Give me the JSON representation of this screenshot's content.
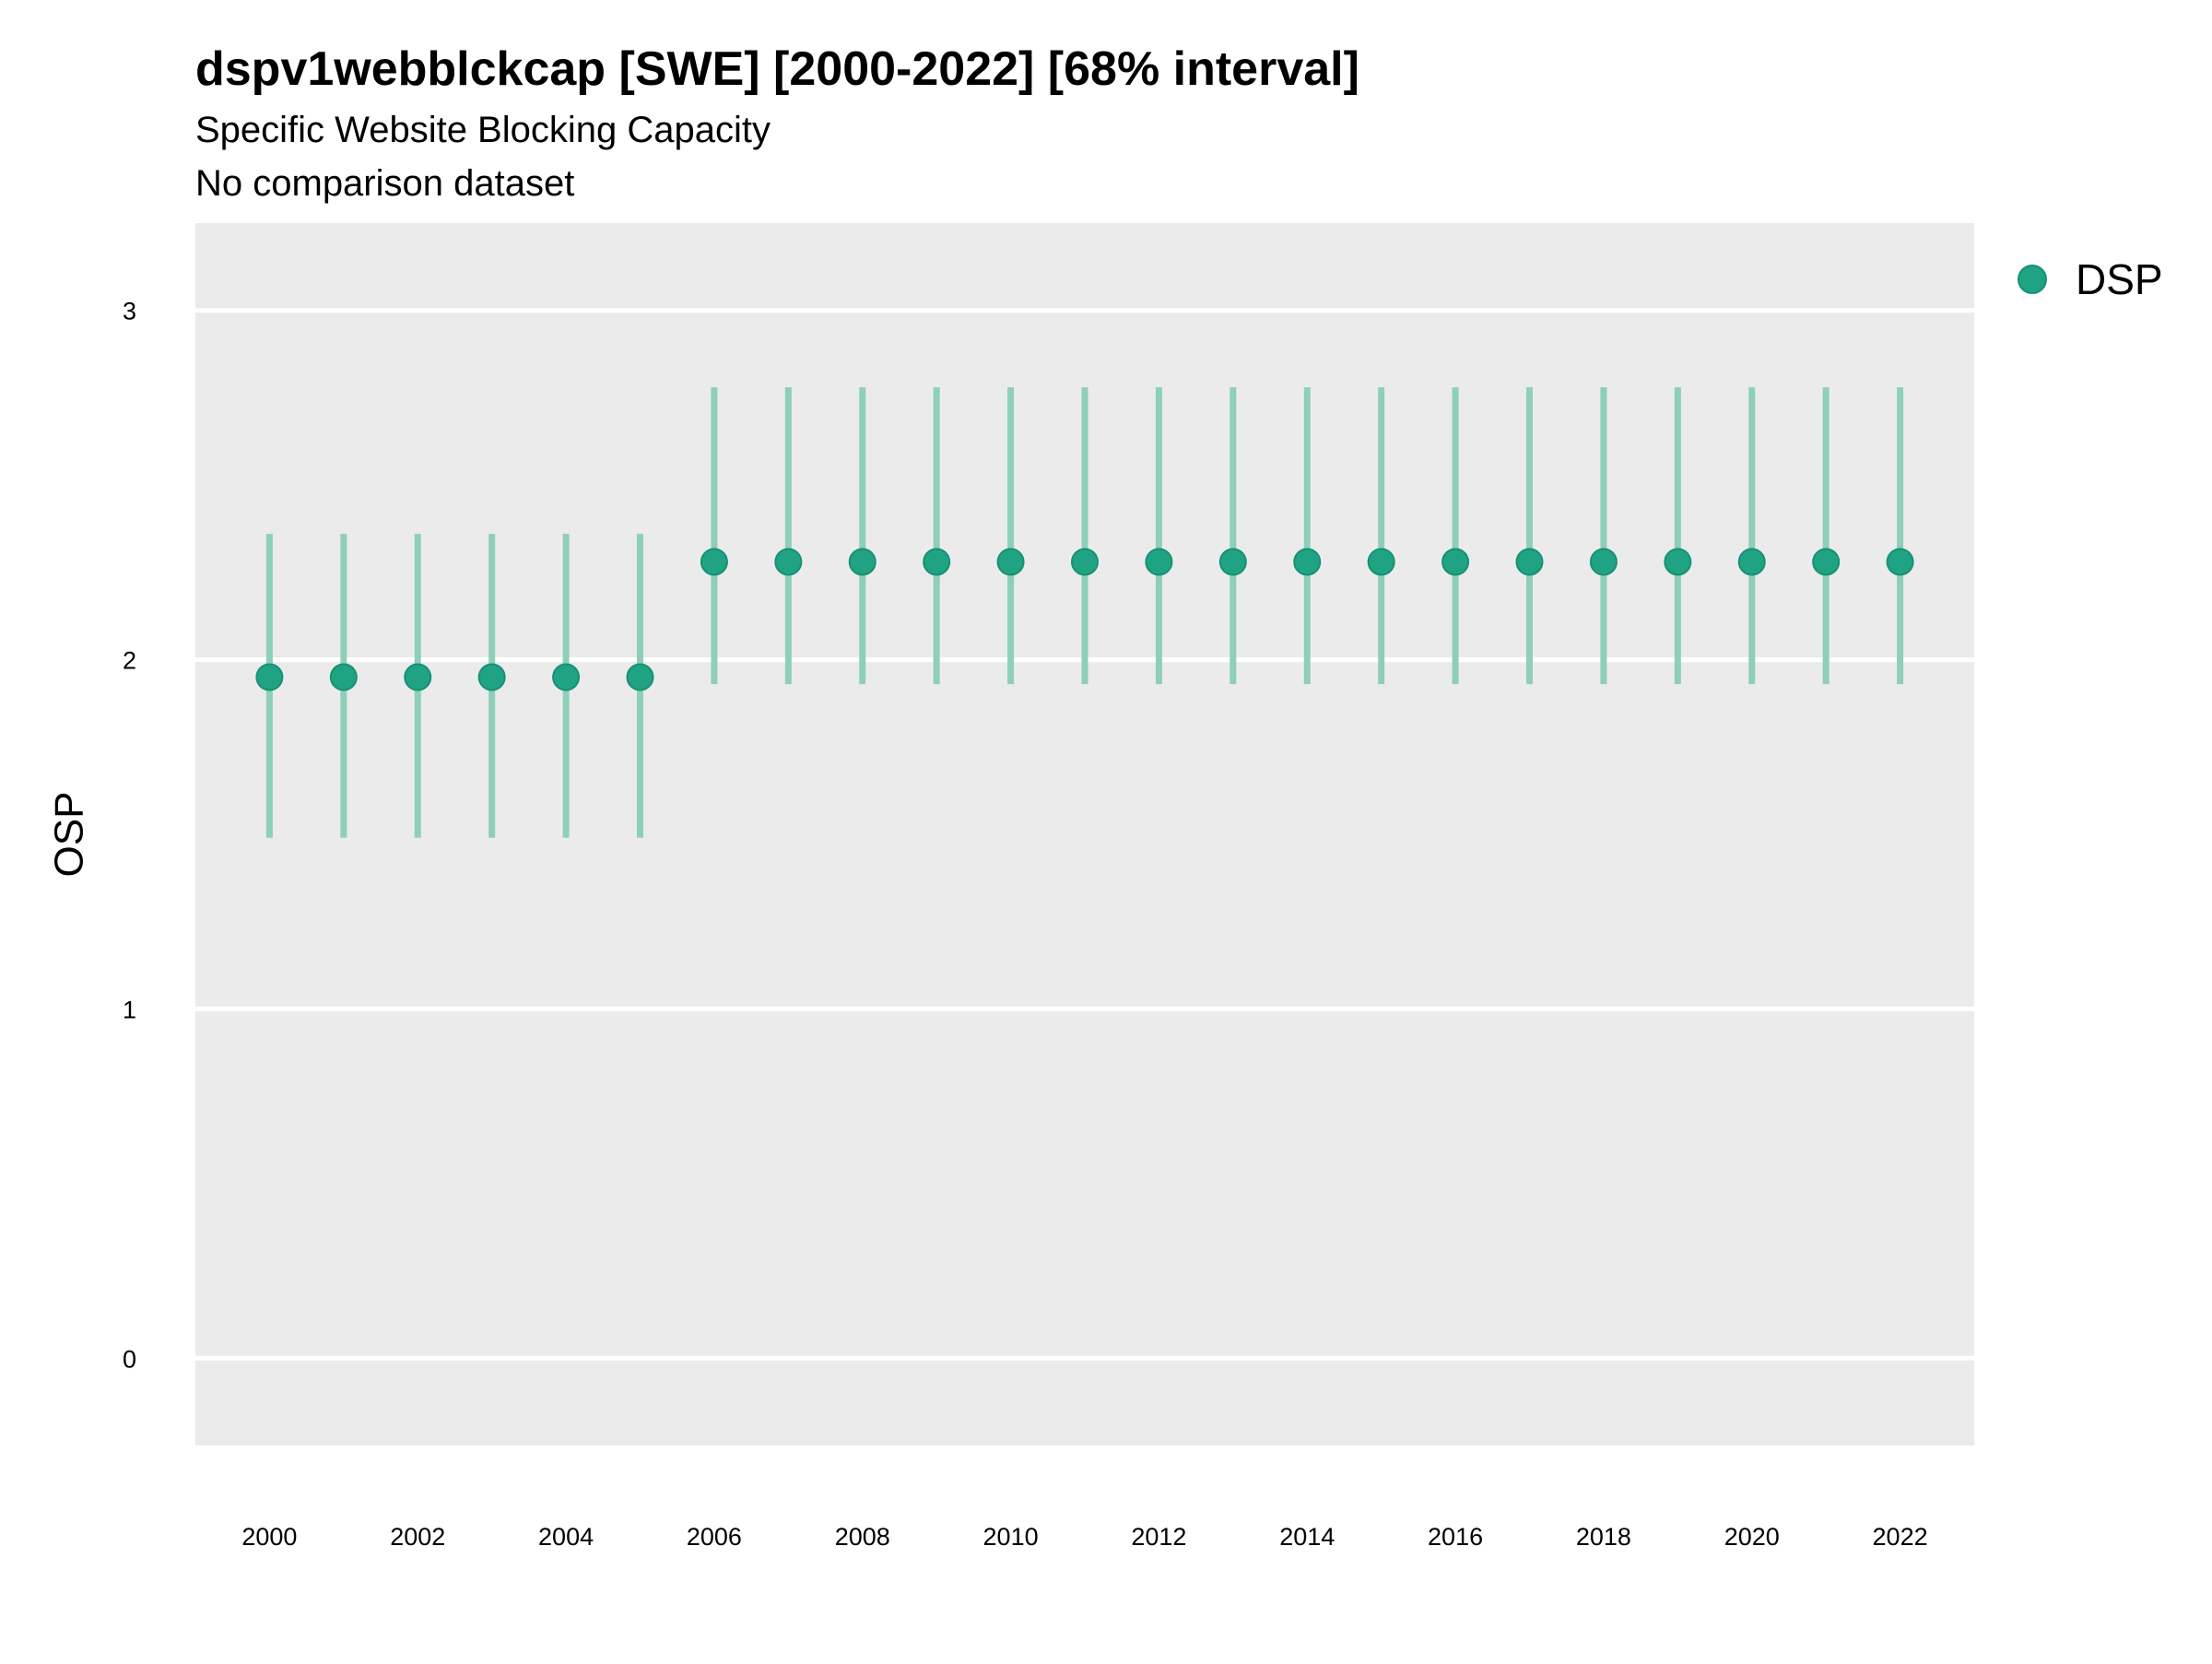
{
  "chart_data": {
    "type": "scatter",
    "title": "dspv1webblckcap [SWE] [2000-2022] [68% interval]",
    "subtitle": "Specific Website Blocking Capacity",
    "caption": "No comparison dataset",
    "xlabel": "",
    "ylabel": "OSP",
    "xlim": [
      1999.0,
      2023.0
    ],
    "ylim": [
      -0.25,
      3.25
    ],
    "yticks": [
      0,
      1,
      2,
      3
    ],
    "xticks": [
      2000,
      2002,
      2004,
      2006,
      2008,
      2010,
      2012,
      2014,
      2016,
      2018,
      2020,
      2022
    ],
    "grid": true,
    "legend_position": "top-right",
    "colors": {
      "point": "#1fa383",
      "interval": "#8ecfba",
      "panel": "#ebebeb",
      "grid": "#ffffff"
    },
    "series": [
      {
        "name": "DSP",
        "x": [
          2000,
          2001,
          2002,
          2003,
          2004,
          2005,
          2006,
          2007,
          2008,
          2009,
          2010,
          2011,
          2012,
          2013,
          2014,
          2015,
          2016,
          2017,
          2018,
          2019,
          2020,
          2021,
          2022
        ],
        "y": [
          1.95,
          1.95,
          1.95,
          1.95,
          1.95,
          1.95,
          2.28,
          2.28,
          2.28,
          2.28,
          2.28,
          2.28,
          2.28,
          2.28,
          2.28,
          2.28,
          2.28,
          2.28,
          2.28,
          2.28,
          2.28,
          2.28,
          2.28
        ],
        "lower": [
          1.49,
          1.49,
          1.49,
          1.49,
          1.49,
          1.49,
          1.93,
          1.93,
          1.93,
          1.93,
          1.93,
          1.93,
          1.93,
          1.93,
          1.93,
          1.93,
          1.93,
          1.93,
          1.93,
          1.93,
          1.93,
          1.93,
          1.93
        ],
        "upper": [
          2.36,
          2.36,
          2.36,
          2.36,
          2.36,
          2.36,
          2.78,
          2.78,
          2.78,
          2.78,
          2.78,
          2.78,
          2.78,
          2.78,
          2.78,
          2.78,
          2.78,
          2.78,
          2.78,
          2.78,
          2.78,
          2.78,
          2.78
        ]
      }
    ]
  }
}
